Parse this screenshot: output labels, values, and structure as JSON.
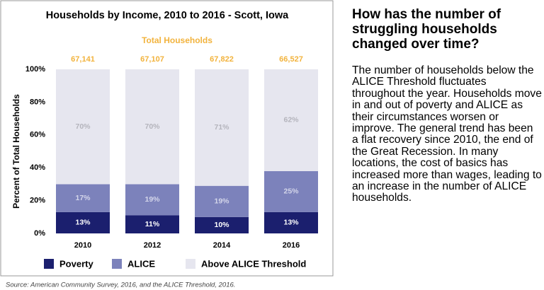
{
  "chart_data": {
    "type": "stacked_bar",
    "title": "Households by Income, 2010 to 2016 - Scott, Iowa",
    "ylabel": "Percent of Total Households",
    "categories": [
      "2010",
      "2012",
      "2014",
      "2016"
    ],
    "series": [
      {
        "name": "Poverty",
        "color": "#1b1f6e",
        "values": [
          13,
          11,
          10,
          13
        ],
        "value_labels": [
          "13%",
          "11%",
          "10%",
          "13%"
        ],
        "label_color": "#ffffff"
      },
      {
        "name": "ALICE",
        "color": "#7c82bb",
        "values": [
          17,
          19,
          19,
          25
        ],
        "value_labels": [
          "17%",
          "19%",
          "19%",
          "25%"
        ],
        "label_color": "#d4d6ea"
      },
      {
        "name": "Above ALICE Threshold",
        "color": "#e6e6ef",
        "values": [
          70,
          70,
          71,
          62
        ],
        "value_labels": [
          "70%",
          "70%",
          "71%",
          "62%"
        ],
        "label_color": "#b4b4bc"
      }
    ],
    "totals": {
      "title": "Total Households",
      "color": "#f2b33d",
      "values": [
        67141,
        67107,
        67822,
        66527
      ],
      "value_labels": [
        "67,141",
        "67,107",
        "67,822",
        "66,527"
      ]
    },
    "ylim": [
      0,
      100
    ],
    "yticks": [
      {
        "value": 0,
        "label": "0%"
      },
      {
        "value": 20,
        "label": "20%"
      },
      {
        "value": 40,
        "label": "40%"
      },
      {
        "value": 60,
        "label": "60%"
      },
      {
        "value": 80,
        "label": "80%"
      },
      {
        "value": 100,
        "label": "100%"
      }
    ],
    "legend": "bottom"
  },
  "source": "Source: American Community Survey, 2016, and the ALICE Threshold, 2016.",
  "sidebar": {
    "heading": "How has the number of struggling households changed over time?",
    "body": "The number of households below the ALICE Threshold fluctuates throughout the year. Households move in and out of poverty and ALICE as their circumstances worsen or improve. The general trend has been a flat recovery since 2010, the end of the Great Recession. In many locations, the cost of basics has increased more than wages, leading to an increase in the number of ALICE households."
  }
}
